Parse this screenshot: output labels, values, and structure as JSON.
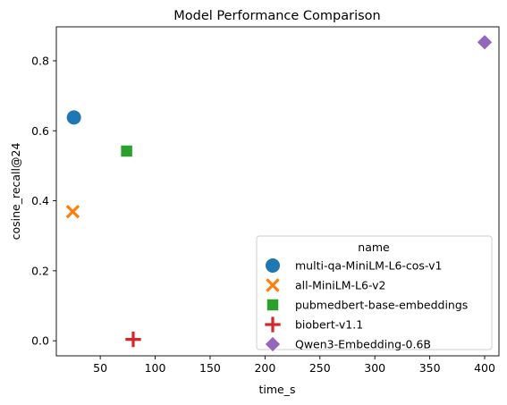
{
  "chart_data": {
    "type": "scatter",
    "title": "Model Performance Comparison",
    "xlabel": "time_s",
    "ylabel": "cosine_recall@24",
    "xlim": [
      10,
      413
    ],
    "ylim": [
      -0.043,
      0.897
    ],
    "xticks": [
      50,
      100,
      150,
      200,
      250,
      300,
      350,
      400
    ],
    "yticks": [
      0.0,
      0.2,
      0.4,
      0.6,
      0.8
    ],
    "xtick_labels": [
      "50",
      "100",
      "150",
      "200",
      "250",
      "300",
      "350",
      "400"
    ],
    "ytick_labels": [
      "0.0",
      "0.2",
      "0.4",
      "0.6",
      "0.8"
    ],
    "grid": false,
    "legend": {
      "title": "name",
      "placement": "lower-right"
    },
    "series": [
      {
        "name": "multi-qa-MiniLM-L6-cos-v1",
        "marker": "circle",
        "color": "#1f77b4",
        "x": [
          26
        ],
        "y": [
          0.638
        ]
      },
      {
        "name": "all-MiniLM-L6-v2",
        "marker": "x",
        "color": "#ff7f0e",
        "x": [
          25
        ],
        "y": [
          0.369
        ]
      },
      {
        "name": "pubmedbert-base-embeddings",
        "marker": "square",
        "color": "#2ca02c",
        "x": [
          74
        ],
        "y": [
          0.542
        ]
      },
      {
        "name": "biobert-v1.1",
        "marker": "plus",
        "color": "#d62728",
        "x": [
          80
        ],
        "y": [
          0.004
        ]
      },
      {
        "name": "Qwen3-Embedding-0.6B",
        "marker": "diamond",
        "color": "#9467bd",
        "x": [
          400
        ],
        "y": [
          0.853
        ]
      }
    ]
  }
}
